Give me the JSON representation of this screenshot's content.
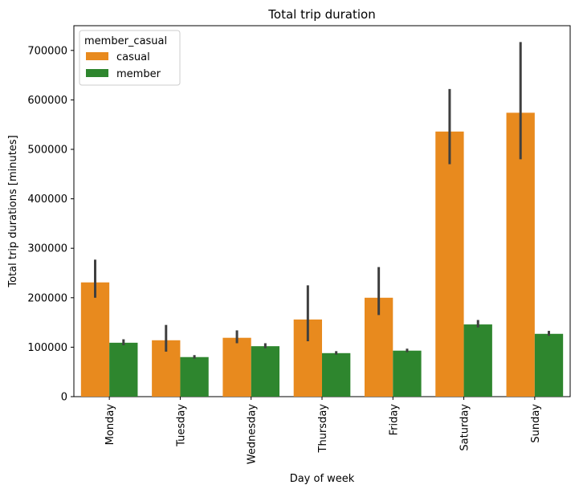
{
  "chart_data": {
    "type": "bar",
    "title": "Total trip duration",
    "xlabel": "Day of week",
    "ylabel": "Total trip durations [minutes]",
    "categories": [
      "Monday",
      "Tuesday",
      "Wednesday",
      "Thursday",
      "Friday",
      "Saturday",
      "Sunday"
    ],
    "ylim": [
      0,
      750000
    ],
    "yticks": [
      0,
      100000,
      200000,
      300000,
      400000,
      500000,
      600000,
      700000
    ],
    "grid": false,
    "legend": {
      "title": "member_casual",
      "position": "top-left"
    },
    "series": [
      {
        "name": "casual",
        "color": "#e88a1e",
        "values": [
          231000,
          114000,
          119000,
          156000,
          200000,
          536000,
          574000
        ],
        "err_low": [
          200000,
          91000,
          108000,
          112000,
          165000,
          470000,
          480000
        ],
        "err_high": [
          277000,
          145000,
          134000,
          225000,
          262000,
          622000,
          717000
        ]
      },
      {
        "name": "member",
        "color": "#2e862e",
        "values": [
          109000,
          80000,
          102000,
          88000,
          93000,
          146000,
          127000
        ],
        "err_low": [
          104000,
          77000,
          98000,
          85000,
          90000,
          140000,
          123000
        ],
        "err_high": [
          116000,
          84000,
          108000,
          92000,
          97000,
          155000,
          133000
        ]
      }
    ],
    "error_bar_color": "#3f3f3f"
  }
}
